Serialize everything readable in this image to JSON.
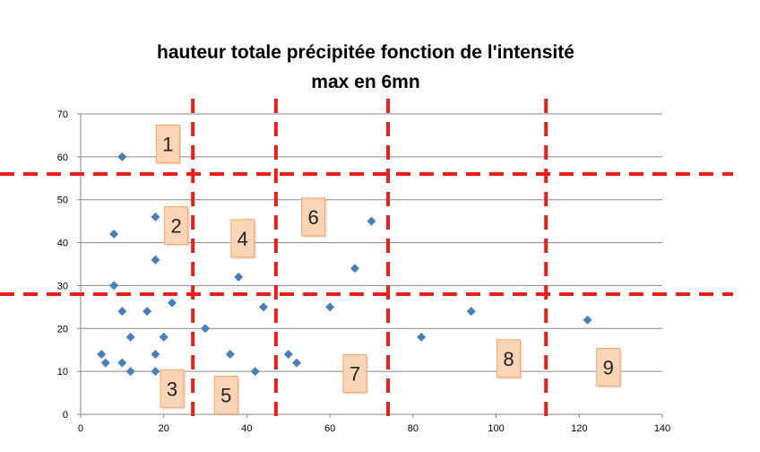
{
  "chart_data": {
    "type": "scatter",
    "title_lines": [
      "hauteur totale précipitée fonction de l'intensité",
      "max en 6mn"
    ],
    "xlim": [
      0,
      140
    ],
    "ylim": [
      0,
      70
    ],
    "x_ticks": [
      0,
      20,
      40,
      60,
      80,
      100,
      120,
      140
    ],
    "y_ticks": [
      0,
      10,
      20,
      30,
      40,
      50,
      60,
      70
    ],
    "grid": "horizontal",
    "legend": "none",
    "colors": {
      "marker": "#4a7ebb",
      "gridline": "#868686",
      "divider": "#e8201c",
      "label_fill": "#fbd5b5",
      "label_border": "#f3a66b"
    },
    "points": [
      {
        "x": 10,
        "y": 60
      },
      {
        "x": 8,
        "y": 42
      },
      {
        "x": 18,
        "y": 46
      },
      {
        "x": 18,
        "y": 36
      },
      {
        "x": 8,
        "y": 30
      },
      {
        "x": 10,
        "y": 24
      },
      {
        "x": 16,
        "y": 24
      },
      {
        "x": 22,
        "y": 26
      },
      {
        "x": 12,
        "y": 18
      },
      {
        "x": 20,
        "y": 18
      },
      {
        "x": 5,
        "y": 14
      },
      {
        "x": 6,
        "y": 12
      },
      {
        "x": 10,
        "y": 12
      },
      {
        "x": 12,
        "y": 10
      },
      {
        "x": 18,
        "y": 14
      },
      {
        "x": 18,
        "y": 10
      },
      {
        "x": 30,
        "y": 20
      },
      {
        "x": 36,
        "y": 14
      },
      {
        "x": 38,
        "y": 32
      },
      {
        "x": 42,
        "y": 10
      },
      {
        "x": 44,
        "y": 25
      },
      {
        "x": 50,
        "y": 14
      },
      {
        "x": 52,
        "y": 12
      },
      {
        "x": 60,
        "y": 25
      },
      {
        "x": 66,
        "y": 34
      },
      {
        "x": 70,
        "y": 45
      },
      {
        "x": 82,
        "y": 18
      },
      {
        "x": 94,
        "y": 24
      },
      {
        "x": 122,
        "y": 22
      }
    ],
    "vertical_dividers_x": [
      27,
      47,
      74,
      112
    ],
    "horizontal_dividers_y": [
      56,
      28
    ],
    "zone_labels": [
      {
        "text": "1",
        "x": 21,
        "y": 63
      },
      {
        "text": "2",
        "x": 23,
        "y": 44
      },
      {
        "text": "3",
        "x": 22,
        "y": 6
      },
      {
        "text": "4",
        "x": 39,
        "y": 41
      },
      {
        "text": "5",
        "x": 35,
        "y": 4.5
      },
      {
        "text": "6",
        "x": 56,
        "y": 46
      },
      {
        "text": "7",
        "x": 66,
        "y": 9.5
      },
      {
        "text": "8",
        "x": 103,
        "y": 13
      },
      {
        "text": "9",
        "x": 127,
        "y": 11
      }
    ]
  }
}
